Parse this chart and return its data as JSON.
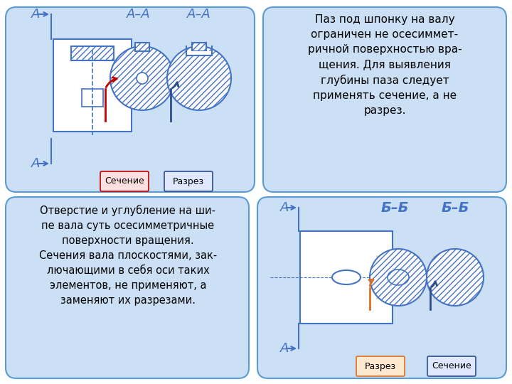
{
  "bg_color": "#ffffff",
  "panel_bg": "#cce0f5",
  "panel_border": "#5b9bd5",
  "text_color": "#000000",
  "top_right_text": "Паз под шпонку на валу\nограничен не осесиммет-\nричной поверхностью вра-\nщения. Для выявления\nглубины паза следует\nприменять сечение, а не\nразрез.",
  "bottom_left_text": "Отверстие и углубление на ши-\nпе вала суть осесимметричные\nповерхности вращения.\nСечения вала плоскостями, зак-\nлючающими в себя оси таких\nэлементов, не применяют, а\nзаменяют их разрезами.",
  "label_secenie": "Сечение",
  "label_razrez": "Разрез",
  "drawing_color": "#4472c4",
  "hatch_color": "#4472c4",
  "red_color": "#c00000",
  "orange_color": "#e07020",
  "dark_blue": "#2e4e8c"
}
